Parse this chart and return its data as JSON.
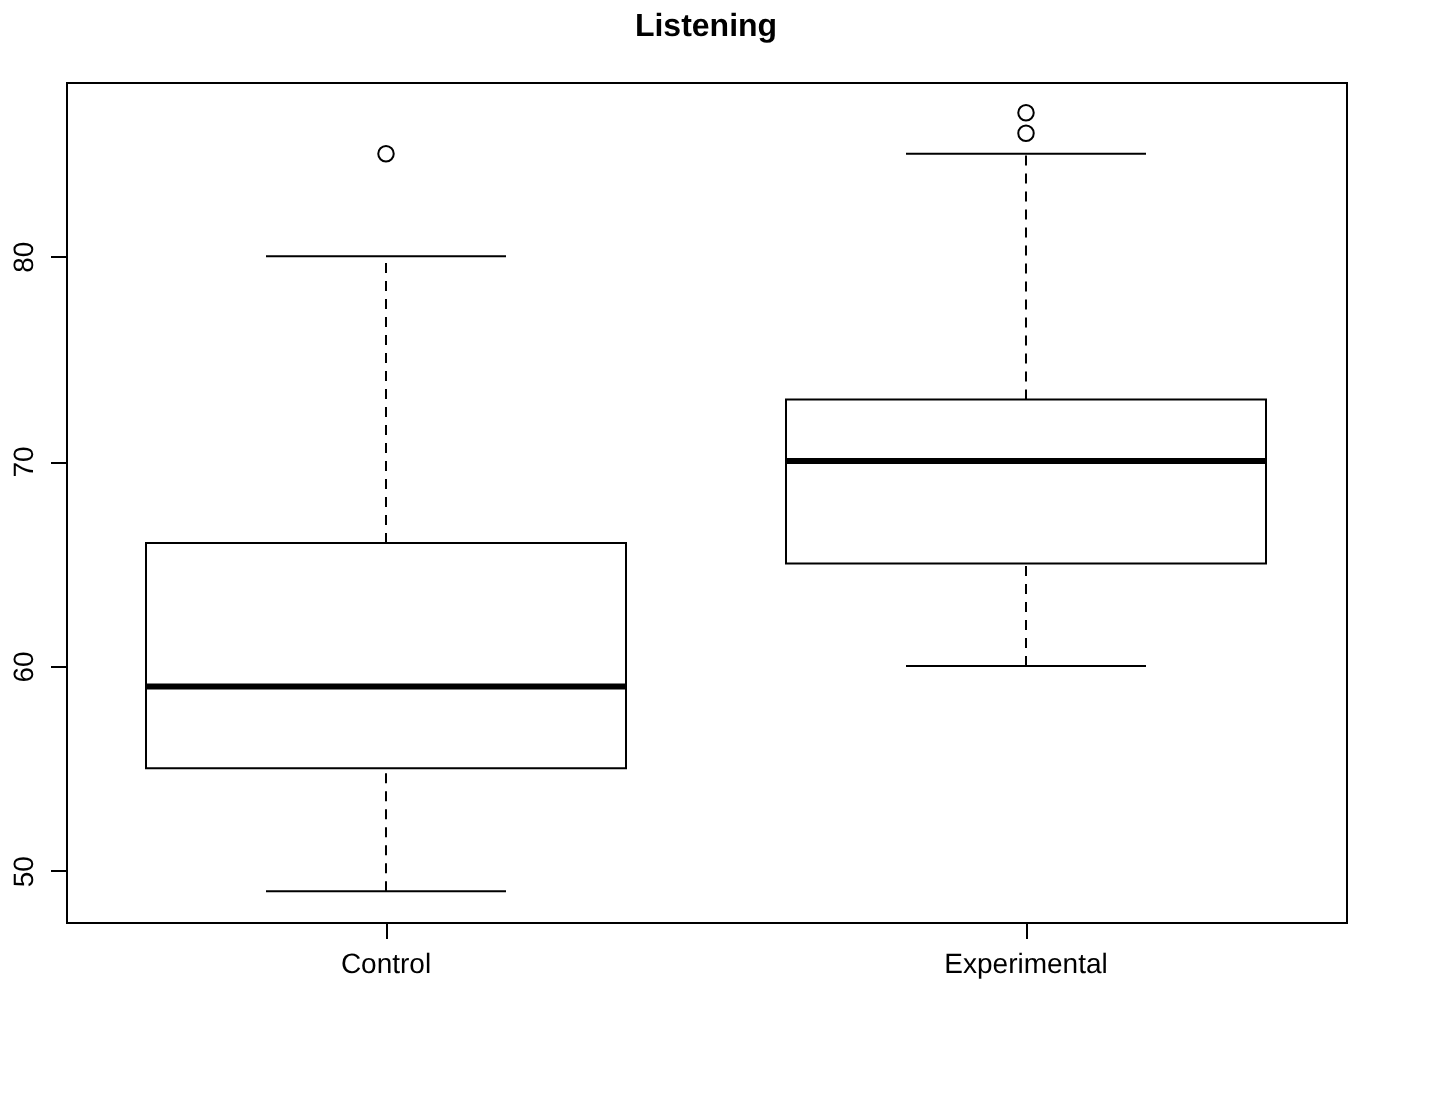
{
  "chart_data": {
    "type": "box",
    "title": "Listening",
    "categories": [
      "Control",
      "Experimental"
    ],
    "boxes": [
      {
        "low": 49,
        "q1": 55,
        "median": 59,
        "q3": 66,
        "high": 80,
        "outliers": [
          85
        ]
      },
      {
        "low": 60,
        "q1": 65,
        "median": 70,
        "q3": 73,
        "high": 85,
        "outliers": [
          86,
          87
        ]
      }
    ],
    "ylim": [
      47.5,
      88.5
    ],
    "yticks": [
      50,
      60,
      70,
      80
    ],
    "grid": false
  }
}
